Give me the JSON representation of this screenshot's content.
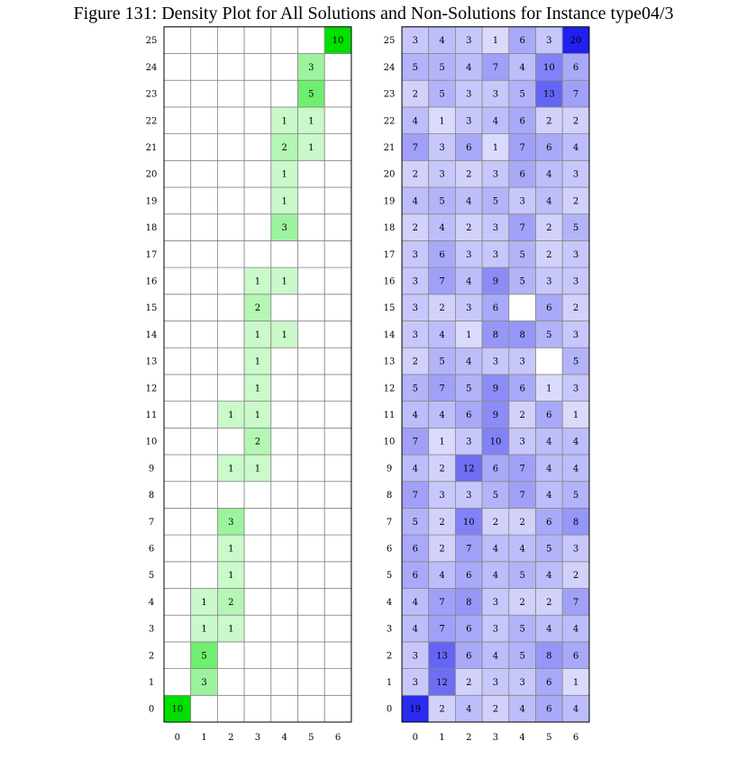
{
  "title": "Figure 131: Density Plot for All Solutions and Non-Solutions for Instance type04/3",
  "colors": {
    "solutions_max": "#00e000",
    "non_solutions_max": "#2020f0",
    "grid": "#888888",
    "border": "#000000"
  },
  "chart_data": [
    {
      "type": "heatmap",
      "name": "",
      "x_ticks": [
        0,
        1,
        2,
        3,
        4,
        5,
        6
      ],
      "y_ticks": [
        0,
        1,
        2,
        3,
        4,
        5,
        6,
        7,
        8,
        9,
        10,
        11,
        12,
        13,
        14,
        15,
        16,
        17,
        18,
        19,
        20,
        21,
        22,
        23,
        24,
        25
      ],
      "max_value": 10,
      "rows": [
        [
          10,
          0,
          0,
          0,
          0,
          0,
          0
        ],
        [
          0,
          3,
          0,
          0,
          0,
          0,
          0
        ],
        [
          0,
          5,
          0,
          0,
          0,
          0,
          0
        ],
        [
          0,
          1,
          1,
          0,
          0,
          0,
          0
        ],
        [
          0,
          1,
          2,
          0,
          0,
          0,
          0
        ],
        [
          0,
          0,
          1,
          0,
          0,
          0,
          0
        ],
        [
          0,
          0,
          1,
          0,
          0,
          0,
          0
        ],
        [
          0,
          0,
          3,
          0,
          0,
          0,
          0
        ],
        [
          0,
          0,
          0,
          0,
          0,
          0,
          0
        ],
        [
          0,
          0,
          1,
          1,
          0,
          0,
          0
        ],
        [
          0,
          0,
          0,
          2,
          0,
          0,
          0
        ],
        [
          0,
          0,
          1,
          1,
          0,
          0,
          0
        ],
        [
          0,
          0,
          0,
          1,
          0,
          0,
          0
        ],
        [
          0,
          0,
          0,
          1,
          0,
          0,
          0
        ],
        [
          0,
          0,
          0,
          1,
          1,
          0,
          0
        ],
        [
          0,
          0,
          0,
          2,
          0,
          0,
          0
        ],
        [
          0,
          0,
          0,
          1,
          1,
          0,
          0
        ],
        [
          0,
          0,
          0,
          0,
          0,
          0,
          0
        ],
        [
          0,
          0,
          0,
          0,
          3,
          0,
          0
        ],
        [
          0,
          0,
          0,
          0,
          1,
          0,
          0
        ],
        [
          0,
          0,
          0,
          0,
          1,
          0,
          0
        ],
        [
          0,
          0,
          0,
          0,
          2,
          1,
          0
        ],
        [
          0,
          0,
          0,
          0,
          1,
          1,
          0
        ],
        [
          0,
          0,
          0,
          0,
          0,
          5,
          0
        ],
        [
          0,
          0,
          0,
          0,
          0,
          3,
          0
        ],
        [
          0,
          0,
          0,
          0,
          0,
          0,
          10
        ]
      ]
    },
    {
      "type": "heatmap",
      "name": "",
      "x_ticks": [
        0,
        1,
        2,
        3,
        4,
        5,
        6
      ],
      "y_ticks": [
        0,
        1,
        2,
        3,
        4,
        5,
        6,
        7,
        8,
        9,
        10,
        11,
        12,
        13,
        14,
        15,
        16,
        17,
        18,
        19,
        20,
        21,
        22,
        23,
        24,
        25
      ],
      "max_value": 20,
      "rows": [
        [
          19,
          2,
          4,
          2,
          4,
          6,
          4
        ],
        [
          3,
          12,
          2,
          3,
          3,
          6,
          1
        ],
        [
          3,
          13,
          6,
          4,
          5,
          8,
          6
        ],
        [
          4,
          7,
          6,
          3,
          5,
          4,
          4
        ],
        [
          4,
          7,
          8,
          3,
          2,
          2,
          7
        ],
        [
          6,
          4,
          6,
          4,
          5,
          4,
          2
        ],
        [
          6,
          2,
          7,
          4,
          4,
          5,
          3
        ],
        [
          5,
          2,
          10,
          2,
          2,
          6,
          8
        ],
        [
          7,
          3,
          3,
          5,
          7,
          4,
          5
        ],
        [
          4,
          2,
          12,
          6,
          7,
          4,
          4
        ],
        [
          7,
          1,
          3,
          10,
          3,
          4,
          4
        ],
        [
          4,
          4,
          6,
          9,
          2,
          6,
          1
        ],
        [
          5,
          7,
          5,
          9,
          6,
          1,
          3
        ],
        [
          2,
          5,
          4,
          3,
          3,
          0,
          5
        ],
        [
          3,
          4,
          1,
          8,
          8,
          5,
          3
        ],
        [
          3,
          2,
          3,
          6,
          0,
          6,
          2
        ],
        [
          3,
          7,
          4,
          9,
          5,
          3,
          3
        ],
        [
          3,
          6,
          3,
          3,
          5,
          2,
          3
        ],
        [
          2,
          4,
          2,
          3,
          7,
          2,
          5
        ],
        [
          4,
          5,
          4,
          5,
          3,
          4,
          2
        ],
        [
          2,
          3,
          2,
          3,
          6,
          4,
          3
        ],
        [
          7,
          3,
          6,
          1,
          7,
          6,
          4
        ],
        [
          4,
          1,
          3,
          4,
          6,
          2,
          2
        ],
        [
          2,
          5,
          3,
          3,
          5,
          13,
          7
        ],
        [
          5,
          5,
          4,
          7,
          4,
          10,
          6
        ],
        [
          3,
          4,
          3,
          1,
          6,
          3,
          20
        ]
      ]
    }
  ]
}
